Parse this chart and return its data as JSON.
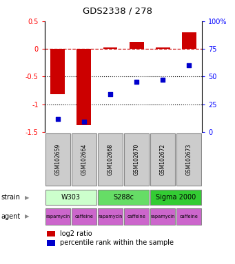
{
  "title": "GDS2338 / 278",
  "samples": [
    "GSM102659",
    "GSM102664",
    "GSM102668",
    "GSM102670",
    "GSM102672",
    "GSM102673"
  ],
  "log2_ratio": [
    -0.82,
    -1.38,
    0.03,
    0.12,
    0.03,
    0.3
  ],
  "percentile": [
    12,
    9,
    34,
    45,
    47,
    60
  ],
  "ylim_left": [
    -1.5,
    0.5
  ],
  "ylim_right": [
    0,
    100
  ],
  "yticks_left": [
    -1.5,
    -1.0,
    -0.5,
    0.0,
    0.5
  ],
  "ytick_labels_left": [
    "-1.5",
    "-1",
    "-0.5",
    "0",
    "0.5"
  ],
  "yticks_right": [
    0,
    25,
    50,
    75,
    100
  ],
  "ytick_labels_right": [
    "0",
    "25",
    "50",
    "75",
    "100%"
  ],
  "bar_color": "#cc0000",
  "dot_color": "#0000cc",
  "dashed_line_color": "#cc0000",
  "dotted_line_color": "#000000",
  "strains": [
    {
      "label": "W303",
      "cols": [
        0,
        1
      ],
      "color": "#ccffcc"
    },
    {
      "label": "S288c",
      "cols": [
        2,
        3
      ],
      "color": "#66dd66"
    },
    {
      "label": "Sigma 2000",
      "cols": [
        4,
        5
      ],
      "color": "#33cc33"
    }
  ],
  "agent_labels": [
    "rapamycin",
    "caffeine",
    "rapamycin",
    "caffeine",
    "rapamycin",
    "caffeine"
  ],
  "agent_color": "#cc66cc",
  "legend_bar_label": "log2 ratio",
  "legend_dot_label": "percentile rank within the sample",
  "strain_label": "strain",
  "agent_label": "agent",
  "bg_color": "#ffffff",
  "sample_box_color": "#cccccc",
  "sample_box_edge": "#888888"
}
